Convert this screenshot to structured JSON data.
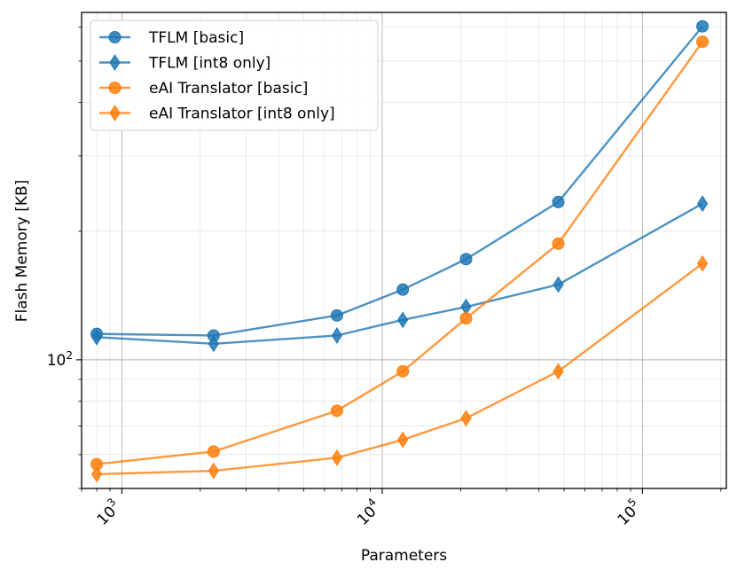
{
  "chart_data": {
    "type": "line",
    "xlabel": "Parameters",
    "ylabel": "Flash Memory [KB]",
    "xscale": "log",
    "yscale": "log",
    "xlim": [
      700,
      210000
    ],
    "ylim": [
      50,
      650
    ],
    "grid": "major and minor",
    "legend_position": "top-left",
    "x_major_ticks": [
      {
        "value": 1000,
        "base": "10",
        "exp": "3"
      },
      {
        "value": 10000,
        "base": "10",
        "exp": "4"
      },
      {
        "value": 100000,
        "base": "10",
        "exp": "5"
      }
    ],
    "y_major_ticks": [
      {
        "value": 100,
        "base": "10",
        "exp": "2"
      }
    ],
    "x": [
      800,
      2250,
      6700,
      12000,
      21000,
      47500,
      170000
    ],
    "series": [
      {
        "name": "TFLM [basic]",
        "color": "#1f77b4",
        "marker": "circle",
        "values": [
          115,
          114,
          127,
          146,
          172,
          234,
          603
        ]
      },
      {
        "name": "TFLM [int8 only]",
        "color": "#1f77b4",
        "marker": "thin_diamond",
        "values": [
          113,
          109,
          114,
          124,
          133,
          150,
          232
        ]
      },
      {
        "name": "eAI Translator [basic]",
        "color": "#ff7f0e",
        "marker": "circle",
        "values": [
          57,
          61,
          76,
          94,
          125,
          187,
          555
        ]
      },
      {
        "name": "eAI Translator [int8 only]",
        "color": "#ff7f0e",
        "marker": "thin_diamond",
        "values": [
          54,
          55,
          59,
          65,
          73,
          94,
          168
        ]
      }
    ]
  }
}
